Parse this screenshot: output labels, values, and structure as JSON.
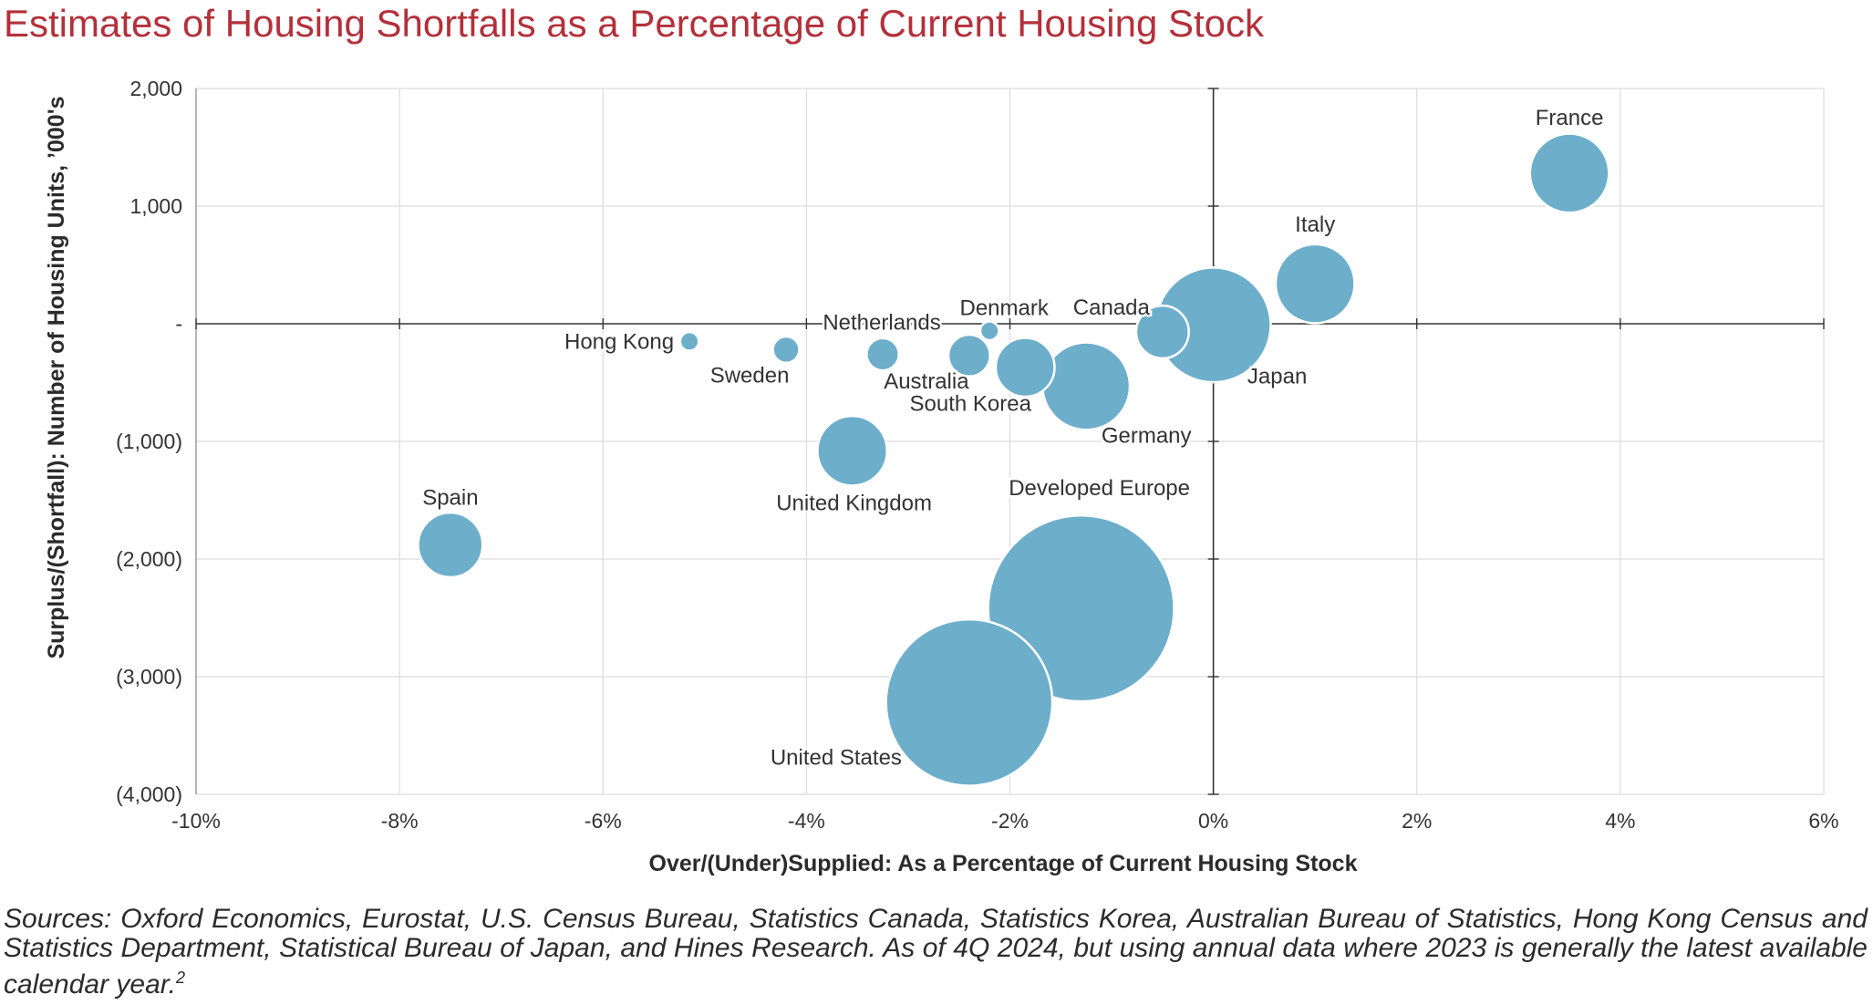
{
  "chart_data": {
    "type": "scatter",
    "title": "Estimates of Housing Shortfalls as a Percentage of Current Housing Stock",
    "xlabel": "Over/(Under)Supplied: As a Percentage of Current Housing Stock",
    "ylabel": "Surplus/(Shortfall): Number of Housing Units, ’000's",
    "xlim": [
      -10,
      6
    ],
    "ylim": [
      -4000,
      2000
    ],
    "x_ticks": [
      -10,
      -8,
      -6,
      -4,
      -2,
      0,
      2,
      4,
      6
    ],
    "x_tick_labels": [
      "-10%",
      "-8%",
      "-6%",
      "-4%",
      "-2%",
      "0%",
      "2%",
      "4%",
      "6%"
    ],
    "y_ticks": [
      2000,
      1000,
      0,
      -1000,
      -2000,
      -3000,
      -4000
    ],
    "y_tick_labels": [
      "2,000",
      "1,000",
      "-",
      "(1,000)",
      "(2,000)",
      "(3,000)",
      "(4,000)"
    ],
    "grid": true,
    "bubble_color": "#6daecb",
    "points": [
      {
        "label": "Developed Europe",
        "x": -1.3,
        "y": -2420,
        "size": 100
      },
      {
        "label": "United States",
        "x": -2.4,
        "y": -3220,
        "size": 80
      },
      {
        "label": "Japan",
        "x": 0.0,
        "y": -10,
        "size": 38
      },
      {
        "label": "France",
        "x": 3.5,
        "y": 1280,
        "size": 18
      },
      {
        "label": "Italy",
        "x": 1.0,
        "y": 340,
        "size": 18
      },
      {
        "label": "Germany",
        "x": -1.25,
        "y": -530,
        "size": 22
      },
      {
        "label": "Spain",
        "x": -7.5,
        "y": -1880,
        "size": 12
      },
      {
        "label": "United Kingdom",
        "x": -3.55,
        "y": -1080,
        "size": 14
      },
      {
        "label": "Canada",
        "x": -0.5,
        "y": -70,
        "size": 8
      },
      {
        "label": "South Korea",
        "x": -1.85,
        "y": -370,
        "size": 10
      },
      {
        "label": "Australia",
        "x": -2.4,
        "y": -270,
        "size": 5
      },
      {
        "label": "Netherlands",
        "x": -3.25,
        "y": -260,
        "size": 3
      },
      {
        "label": "Denmark",
        "x": -2.2,
        "y": -60,
        "size": 1
      },
      {
        "label": "Sweden",
        "x": -4.2,
        "y": -220,
        "size": 2
      },
      {
        "label": "Hong Kong",
        "x": -5.15,
        "y": -150,
        "size": 1
      }
    ]
  },
  "footnote": "Sources: Oxford Economics, Eurostat, U.S. Census Bureau, Statistics Canada, Statistics Korea, Australian Bureau of Statistics, Hong Kong Census and Statistics Department, Statistical Bureau of Japan, and Hines Research. As of 4Q 2024, but using annual data where 2023 is generally the latest available calendar year.",
  "footnote_marker": "2"
}
